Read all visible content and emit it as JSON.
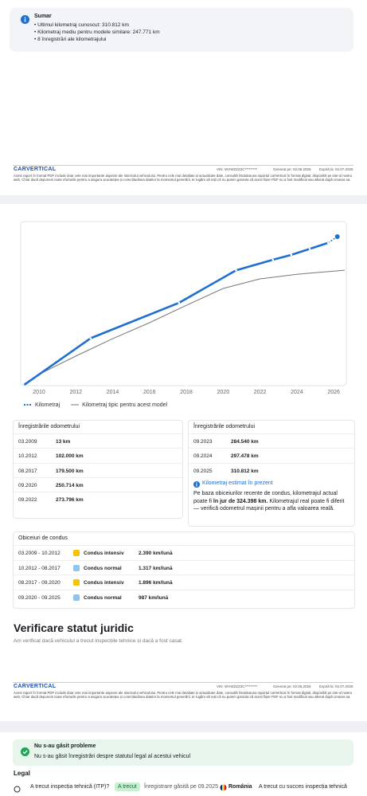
{
  "summary": {
    "title": "Sumar",
    "items": [
      "Ultimul kilometraj cunoscut: 310.812 km",
      "Kilometraj mediu pentru modele similare: 247.771 km",
      "8 înregistrări ale kilometrajului"
    ]
  },
  "footer": {
    "logo": "CARVERTICAL",
    "vin": "VIN: WVWZZZ3C*********",
    "generated": "Generat pe: 02.06.2026",
    "expires": "Expiră la: 02.07.2026",
    "disclaimer": "Acest raport în format PDF include doar cele mai importante aspecte ale istoricului vehiculului. Pentru cele mai detaliate și actualizate date, consultă întotdeauna raportul carVertical în format digital, disponibil pe site-ul nostru web. Chiar dacă depunem toate eforturile pentru a asigura acuratețea și corectitudinea datelor la momentul generării, te rugăm să reții că nu putem garanta că acest fișier PDF nu a fost modificat sau alterat după crearea sa."
  },
  "chart_data": {
    "type": "line",
    "xlim": [
      2009.05,
      2026.6
    ],
    "ylim": [
      0,
      354000
    ],
    "xticks": [
      2010,
      2012,
      2014,
      2016,
      2018,
      2020,
      2022,
      2024,
      2026
    ],
    "grid": false,
    "series": [
      {
        "name": "Kilometraj",
        "color": "#1f6fd1",
        "x": [
          2009.2,
          2012.8,
          2017.6,
          2020.7,
          2022.7,
          2023.7,
          2024.7,
          2025.7
        ],
        "values": [
          13,
          102000,
          179500,
          250714,
          273796,
          284540,
          297478,
          310812
        ],
        "estimate": {
          "x": 2026.2,
          "value": 324398
        }
      },
      {
        "name": "Kilometraj tipic pentru acest model",
        "color": "#777777",
        "x": [
          2009.2,
          2010,
          2012,
          2014,
          2016,
          2018,
          2020,
          2022,
          2024,
          2026.6
        ],
        "values": [
          2000,
          23000,
          63000,
          101000,
          136000,
          174000,
          211000,
          232000,
          242000,
          251000
        ]
      }
    ]
  },
  "odometer": {
    "title": "Înregistrările odometrului",
    "rows": [
      [
        "03.2009",
        "13 km"
      ],
      [
        "10.2012",
        "102.000 km"
      ],
      [
        "08.2017",
        "179.500 km"
      ],
      [
        "09.2020",
        "250.714 km"
      ],
      [
        "09.2022",
        "273.796 km"
      ]
    ]
  },
  "odometer_right": {
    "title": "Înregistrările odometrului",
    "rows": [
      [
        "09.2023",
        "284.540 km"
      ],
      [
        "09.2024",
        "297.478 km"
      ],
      [
        "09.2025",
        "310.812 km"
      ]
    ]
  },
  "estimate": {
    "title": "Kilometraj estimat în prezent",
    "text_before": "Pe baza obiceiurilor recente de condus, kilometrajul actual poate fi ",
    "bold": "în jur de 324.398 km.",
    "text_after": " Kilometrajul real poate fi diferit — verifică odometrul mașinii pentru a afla valoarea reală."
  },
  "habits": {
    "title": "Obiceiuri de condus",
    "rows": [
      {
        "period": "03.2009 - 10.2012",
        "color": "#f5c400",
        "label": "Condus intensiv",
        "rate": "2.390 km/lună"
      },
      {
        "period": "10.2012 - 08.2017",
        "color": "#8ec5f0",
        "label": "Condus normal",
        "rate": "1.317 km/lună"
      },
      {
        "period": "08.2017 - 09.2020",
        "color": "#f5c400",
        "label": "Condus intensiv",
        "rate": "1.896 km/lună"
      },
      {
        "period": "09.2020 - 09.2025",
        "color": "#8ec5f0",
        "label": "Condus normal",
        "rate": "987 km/lună"
      }
    ]
  },
  "legal_section": {
    "title": "Verificare statut juridic",
    "subtitle": "Am verificat dacă vehiculul a trecut inspecțiile tehnice și dacă a fost casat."
  },
  "status": {
    "title": "Nu s-au găsit probleme",
    "text": "Nu s-au găsit înregistrări despre statutul legal al acestui vehicul"
  },
  "legal": {
    "title": "Legal",
    "question": "A trecut inspecția tehnică (ITP)?",
    "badge": "A trecut",
    "record": "Înregistrare găsită pe 09.2025",
    "country": "România",
    "result": "A trecut cu succes inspecția tehnică"
  }
}
